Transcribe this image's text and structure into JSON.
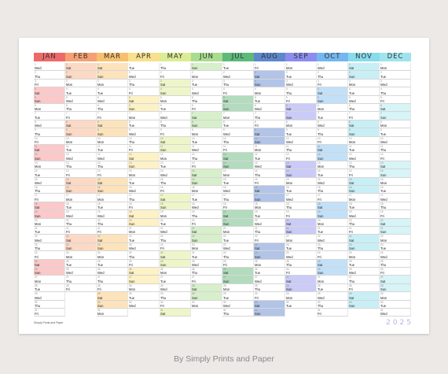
{
  "calendar": {
    "year": "2025",
    "months": [
      {
        "label": "JAN",
        "color": "#ee6a6a",
        "tint": "#fbc9c9",
        "startWeekday": 3,
        "days": 31
      },
      {
        "label": "FEB",
        "color": "#f5a072",
        "tint": "#fcd9c4",
        "startWeekday": 6,
        "days": 28
      },
      {
        "label": "MAR",
        "color": "#f7c06e",
        "tint": "#fde3bb",
        "startWeekday": 6,
        "days": 31
      },
      {
        "label": "APR",
        "color": "#f8e08c",
        "tint": "#fdf1c6",
        "startWeekday": 2,
        "days": 30
      },
      {
        "label": "MAY",
        "color": "#dcec93",
        "tint": "#eef6c9",
        "startWeekday": 4,
        "days": 31
      },
      {
        "label": "JUN",
        "color": "#a9dc8f",
        "tint": "#d7efca",
        "startWeekday": 0,
        "days": 30
      },
      {
        "label": "JUL",
        "color": "#5dba7a",
        "tint": "#b2dcbd",
        "startWeekday": 2,
        "days": 31
      },
      {
        "label": "AUG",
        "color": "#5e87cc",
        "tint": "#b2c4e8",
        "startWeekday": 5,
        "days": 31
      },
      {
        "label": "SEP",
        "color": "#8c8cef",
        "tint": "#cbcbf8",
        "startWeekday": 1,
        "days": 30
      },
      {
        "label": "OCT",
        "color": "#74b6ee",
        "tint": "#c2e0f8",
        "startWeekday": 3,
        "days": 31
      },
      {
        "label": "NOV",
        "color": "#86dcea",
        "tint": "#c9eff6",
        "startWeekday": 6,
        "days": 30
      },
      {
        "label": "DEC",
        "color": "#9fe4ec",
        "tint": "#d7f4f7",
        "startWeekday": 1,
        "days": 31
      }
    ],
    "weekdays": [
      "Sun",
      "Mon",
      "Tue",
      "Wed",
      "Thu",
      "Fri",
      "Sat"
    ],
    "footnote": "Simply Prints and Paper"
  },
  "caption": "By Simply Prints and Paper"
}
